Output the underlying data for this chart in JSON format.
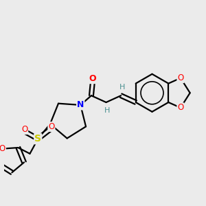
{
  "background_color": "#ebebeb",
  "atom_colors": {
    "O": "#ff0000",
    "N": "#0000ff",
    "S": "#cccc00",
    "C": "#000000",
    "H": "#4a9090"
  },
  "bond_color": "#000000",
  "bond_width": 1.6,
  "figsize": [
    3.0,
    3.0
  ],
  "dpi": 100,
  "xlim": [
    0,
    300
  ],
  "ylim": [
    0,
    300
  ]
}
